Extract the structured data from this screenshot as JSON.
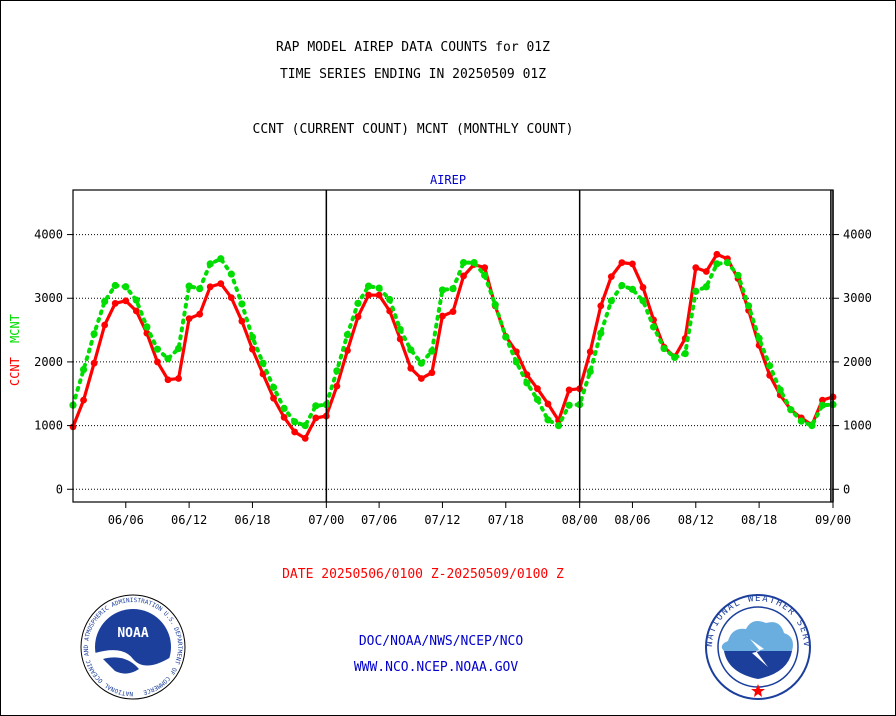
{
  "header": {
    "title_line1": "RAP MODEL AIREP DATA COUNTS for 01Z",
    "title_line2": "TIME SERIES ENDING IN 20250509 01Z",
    "subtitle": "CCNT (CURRENT COUNT) MCNT (MONTHLY COUNT)"
  },
  "footer": {
    "date_range": "DATE 20250506/0100 Z-20250509/0100 Z",
    "org": "DOC/NOAA/NWS/NCEP/NCO",
    "url": "WWW.NCO.NCEP.NOAA.GOV",
    "noaa_logo_text": "NOAA",
    "noaa_seal_ring": "NATIONAL OCEANIC AND ATMOSPHERIC ADMINISTRATION U.S. DEPARTMENT OF COMMERCE",
    "nws_seal_ring": "NATIONAL WEATHER SERVICE"
  },
  "colors": {
    "ccnt": "#ff0000",
    "mcnt": "#00dd00",
    "title": "#000000",
    "date": "#ff0000",
    "footer_text": "#0000cc",
    "plot_label": "#0000cc"
  },
  "chart_data": {
    "type": "line",
    "plot_label": "AIREP",
    "ylabel_ccnt": "CCNT",
    "ylabel_mcnt": "MCNT",
    "ylim": [
      -200,
      4700
    ],
    "y_ticks": [
      0,
      1000,
      2000,
      3000,
      4000
    ],
    "y_tick_labels": [
      "0",
      "1000",
      "2000",
      "3000",
      "4000"
    ],
    "x_range_hours": [
      0,
      72
    ],
    "x_ticks": [
      {
        "h": 5,
        "label": "06/06"
      },
      {
        "h": 11,
        "label": "06/12"
      },
      {
        "h": 17,
        "label": "06/18"
      },
      {
        "h": 24,
        "label": "07/00"
      },
      {
        "h": 29,
        "label": "07/06"
      },
      {
        "h": 35,
        "label": "07/12"
      },
      {
        "h": 41,
        "label": "07/18"
      },
      {
        "h": 48,
        "label": "08/00"
      },
      {
        "h": 53,
        "label": "08/06"
      },
      {
        "h": 59,
        "label": "08/12"
      },
      {
        "h": 65,
        "label": "08/18"
      },
      {
        "h": 72,
        "label": "09/00"
      }
    ],
    "day_boundaries_h": [
      24,
      48,
      71.8,
      72
    ],
    "grid": true,
    "series": [
      {
        "name": "CCNT",
        "style": "solid",
        "values": [
          [
            0,
            980
          ],
          [
            1,
            1400
          ],
          [
            2,
            1980
          ],
          [
            3,
            2580
          ],
          [
            4,
            2920
          ],
          [
            5,
            2960
          ],
          [
            6,
            2800
          ],
          [
            7,
            2450
          ],
          [
            8,
            2000
          ],
          [
            9,
            1720
          ],
          [
            10,
            1740
          ],
          [
            11,
            2680
          ],
          [
            12,
            2750
          ],
          [
            13,
            3180
          ],
          [
            14,
            3230
          ],
          [
            15,
            3010
          ],
          [
            16,
            2640
          ],
          [
            17,
            2200
          ],
          [
            18,
            1810
          ],
          [
            19,
            1430
          ],
          [
            20,
            1130
          ],
          [
            21,
            900
          ],
          [
            22,
            800
          ],
          [
            23,
            1120
          ],
          [
            24,
            1150
          ],
          [
            25,
            1620
          ],
          [
            26,
            2180
          ],
          [
            27,
            2710
          ],
          [
            28,
            3050
          ],
          [
            29,
            3050
          ],
          [
            30,
            2800
          ],
          [
            31,
            2360
          ],
          [
            32,
            1900
          ],
          [
            33,
            1740
          ],
          [
            34,
            1830
          ],
          [
            35,
            2720
          ],
          [
            36,
            2790
          ],
          [
            37,
            3350
          ],
          [
            38,
            3530
          ],
          [
            39,
            3480
          ],
          [
            40,
            2880
          ],
          [
            41,
            2400
          ],
          [
            42,
            2160
          ],
          [
            43,
            1800
          ],
          [
            44,
            1580
          ],
          [
            45,
            1340
          ],
          [
            46,
            1080
          ],
          [
            47,
            1560
          ],
          [
            48,
            1580
          ],
          [
            49,
            2160
          ],
          [
            50,
            2880
          ],
          [
            51,
            3340
          ],
          [
            52,
            3560
          ],
          [
            53,
            3540
          ],
          [
            54,
            3170
          ],
          [
            55,
            2660
          ],
          [
            56,
            2230
          ],
          [
            57,
            2080
          ],
          [
            58,
            2370
          ],
          [
            59,
            3480
          ],
          [
            60,
            3420
          ],
          [
            61,
            3690
          ],
          [
            62,
            3620
          ],
          [
            63,
            3310
          ],
          [
            64,
            2810
          ],
          [
            65,
            2260
          ],
          [
            66,
            1790
          ],
          [
            67,
            1480
          ],
          [
            68,
            1250
          ],
          [
            69,
            1120
          ],
          [
            70,
            1010
          ],
          [
            71,
            1400
          ],
          [
            72,
            1450
          ]
        ]
      },
      {
        "name": "MCNT",
        "style": "dotted",
        "values": [
          [
            0,
            1320
          ],
          [
            1,
            1880
          ],
          [
            2,
            2440
          ],
          [
            3,
            2950
          ],
          [
            4,
            3200
          ],
          [
            5,
            3180
          ],
          [
            6,
            2970
          ],
          [
            7,
            2550
          ],
          [
            8,
            2200
          ],
          [
            9,
            2050
          ],
          [
            10,
            2210
          ],
          [
            11,
            3190
          ],
          [
            12,
            3150
          ],
          [
            13,
            3540
          ],
          [
            14,
            3620
          ],
          [
            15,
            3380
          ],
          [
            16,
            2910
          ],
          [
            17,
            2390
          ],
          [
            18,
            1980
          ],
          [
            19,
            1600
          ],
          [
            20,
            1270
          ],
          [
            21,
            1060
          ],
          [
            22,
            1000
          ],
          [
            23,
            1310
          ],
          [
            24,
            1330
          ],
          [
            25,
            1860
          ],
          [
            26,
            2430
          ],
          [
            27,
            2920
          ],
          [
            28,
            3190
          ],
          [
            29,
            3160
          ],
          [
            30,
            2980
          ],
          [
            31,
            2510
          ],
          [
            32,
            2190
          ],
          [
            33,
            1980
          ],
          [
            34,
            2170
          ],
          [
            35,
            3130
          ],
          [
            36,
            3150
          ],
          [
            37,
            3560
          ],
          [
            38,
            3560
          ],
          [
            39,
            3360
          ],
          [
            40,
            2900
          ],
          [
            41,
            2390
          ],
          [
            42,
            2000
          ],
          [
            43,
            1670
          ],
          [
            44,
            1410
          ],
          [
            45,
            1090
          ],
          [
            46,
            1000
          ],
          [
            47,
            1320
          ],
          [
            48,
            1330
          ],
          [
            49,
            1850
          ],
          [
            50,
            2450
          ],
          [
            51,
            2960
          ],
          [
            52,
            3200
          ],
          [
            53,
            3140
          ],
          [
            54,
            2960
          ],
          [
            55,
            2550
          ],
          [
            56,
            2210
          ],
          [
            57,
            2070
          ],
          [
            58,
            2130
          ],
          [
            59,
            3110
          ],
          [
            60,
            3180
          ],
          [
            61,
            3540
          ],
          [
            62,
            3560
          ],
          [
            63,
            3360
          ],
          [
            64,
            2880
          ],
          [
            65,
            2370
          ],
          [
            66,
            1940
          ],
          [
            67,
            1560
          ],
          [
            68,
            1250
          ],
          [
            69,
            1070
          ],
          [
            70,
            1000
          ],
          [
            71,
            1320
          ],
          [
            72,
            1330
          ]
        ]
      }
    ]
  }
}
